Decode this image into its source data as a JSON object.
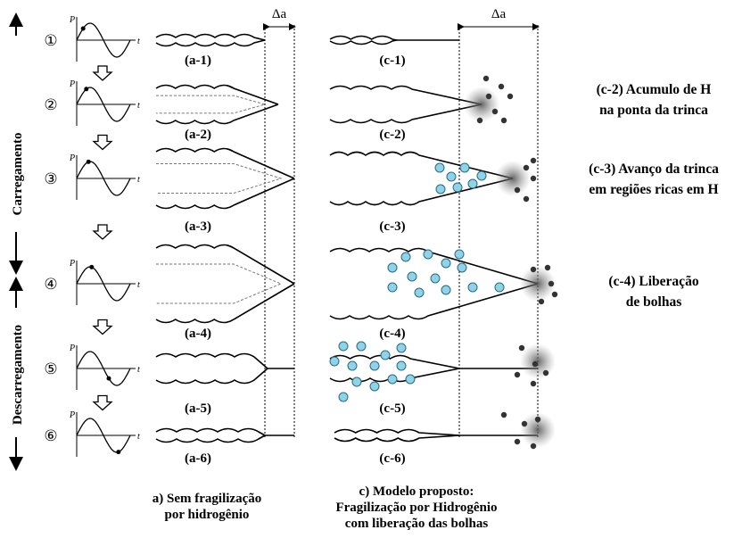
{
  "stages": [
    {
      "number": "①",
      "plot_y": "P",
      "plot_x": "t",
      "label_a": "(a-1)",
      "label_c": "(c-1)"
    },
    {
      "number": "②",
      "plot_y": "P",
      "plot_x": "t",
      "label_a": "(a-2)",
      "label_c": "(c-2)"
    },
    {
      "number": "③",
      "plot_y": "P",
      "plot_x": "t",
      "label_a": "(a-3)",
      "label_c": "(c-3)"
    },
    {
      "number": "④",
      "plot_y": "P",
      "plot_x": "t",
      "label_a": "(a-4)",
      "label_c": "(c-4)"
    },
    {
      "number": "⑤",
      "plot_y": "P",
      "plot_x": "t",
      "label_a": "(a-5)",
      "label_c": "(c-5)"
    },
    {
      "number": "⑥",
      "plot_y": "P",
      "plot_x": "t",
      "label_a": "(a-6)",
      "label_c": "(c-6)"
    }
  ],
  "delta_a": [
    "Δa",
    "Δa"
  ],
  "annotations": [
    {
      "lines": [
        "(c-2) Acumulo de H",
        "na ponta da trinca"
      ]
    },
    {
      "lines": [
        "(c-3) Avanço da trinca",
        "em regiões ricas em H"
      ]
    },
    {
      "lines": [
        "(c-4) Liberação",
        "de bolhas"
      ]
    }
  ],
  "side_labels": {
    "loading": "Carregamento",
    "unloading": "Descarregamento"
  },
  "captions": {
    "a": [
      "a) Sem fragilização",
      "por hidrogênio"
    ],
    "c": [
      "c) Modelo proposto:",
      "Fragilização por Hidrogênio",
      "com liberação das bolhas"
    ]
  }
}
